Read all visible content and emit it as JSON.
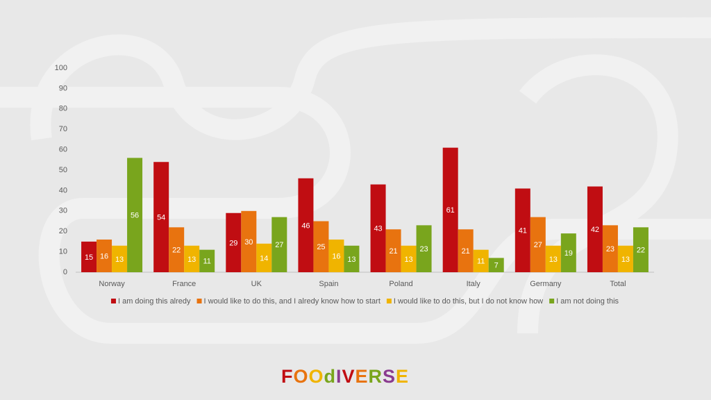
{
  "chart_data": {
    "type": "bar",
    "categories": [
      "Norway",
      "France",
      "UK",
      "Spain",
      "Poland",
      "Italy",
      "Germany",
      "Total"
    ],
    "series": [
      {
        "name": "I am doing this alredy",
        "color": "#c00d12",
        "values": [
          15,
          54,
          29,
          46,
          43,
          61,
          41,
          42
        ]
      },
      {
        "name": "I would like to do this, and I alredy know how to start",
        "color": "#e8730f",
        "values": [
          16,
          22,
          30,
          25,
          21,
          21,
          27,
          23
        ]
      },
      {
        "name": "I would like to do this, but I do not know how",
        "color": "#f0b400",
        "values": [
          13,
          13,
          14,
          16,
          13,
          11,
          13,
          13
        ]
      },
      {
        "name": "I am not doing this",
        "color": "#79a51d",
        "values": [
          56,
          11,
          27,
          13,
          23,
          7,
          19,
          22
        ]
      }
    ],
    "ylim": [
      0,
      100
    ],
    "yticks": [
      0,
      10,
      20,
      30,
      40,
      50,
      60,
      70,
      80,
      90,
      100
    ],
    "grid": false,
    "legend": "bottom"
  },
  "logo": "FOOdIVERSE"
}
